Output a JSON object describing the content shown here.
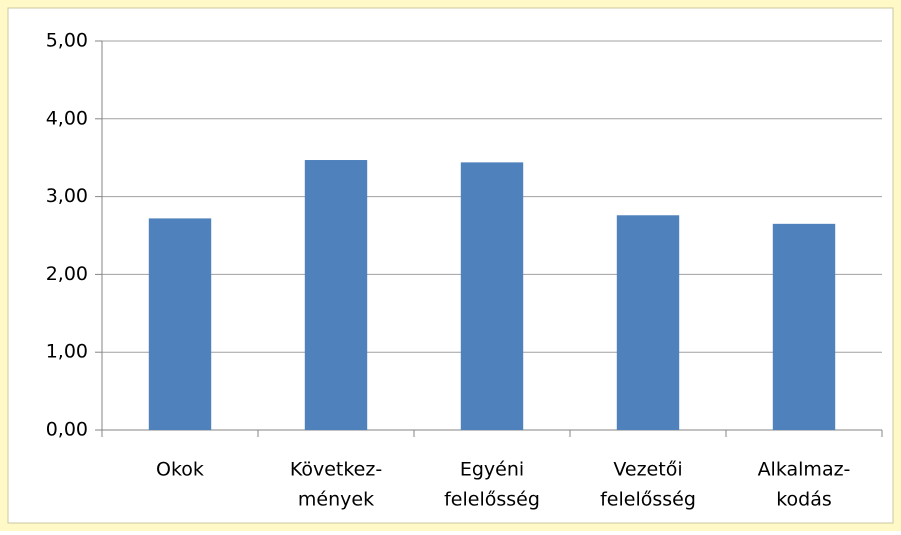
{
  "chart_data": {
    "type": "bar",
    "categories": [
      [
        "Okok"
      ],
      [
        "Következ-",
        "mények"
      ],
      [
        "Egyéni",
        "felelősség"
      ],
      [
        "Vezetői",
        "felelősség"
      ],
      [
        "Alkalmaz-",
        "kodás"
      ]
    ],
    "values": [
      2.72,
      3.47,
      3.44,
      2.76,
      2.65
    ],
    "color": "#4f81bd",
    "ylim": [
      0,
      5
    ],
    "yticks": [
      {
        "value": 0,
        "label": "0,00"
      },
      {
        "value": 1,
        "label": "1,00"
      },
      {
        "value": 2,
        "label": "2,00"
      },
      {
        "value": 3,
        "label": "3,00"
      },
      {
        "value": 4,
        "label": "4,00"
      },
      {
        "value": 5,
        "label": "5,00"
      }
    ],
    "grid": true
  }
}
